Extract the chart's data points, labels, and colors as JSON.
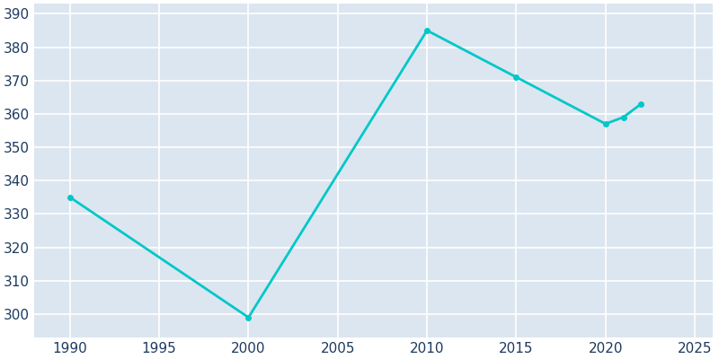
{
  "years": [
    1990,
    2000,
    2010,
    2015,
    2020,
    2021,
    2022
  ],
  "population": [
    335,
    299,
    385,
    371,
    357,
    359,
    363
  ],
  "line_color": "#00c8c8",
  "plot_bg_color": "#dce6f0",
  "fig_bg_color": "#ffffff",
  "grid_color": "#ffffff",
  "tick_color": "#1e3a5f",
  "xlim": [
    1988,
    2026
  ],
  "ylim": [
    293,
    393
  ],
  "yticks": [
    300,
    310,
    320,
    330,
    340,
    350,
    360,
    370,
    380,
    390
  ],
  "xticks": [
    1990,
    1995,
    2000,
    2005,
    2010,
    2015,
    2020,
    2025
  ],
  "tick_labelsize": 11
}
